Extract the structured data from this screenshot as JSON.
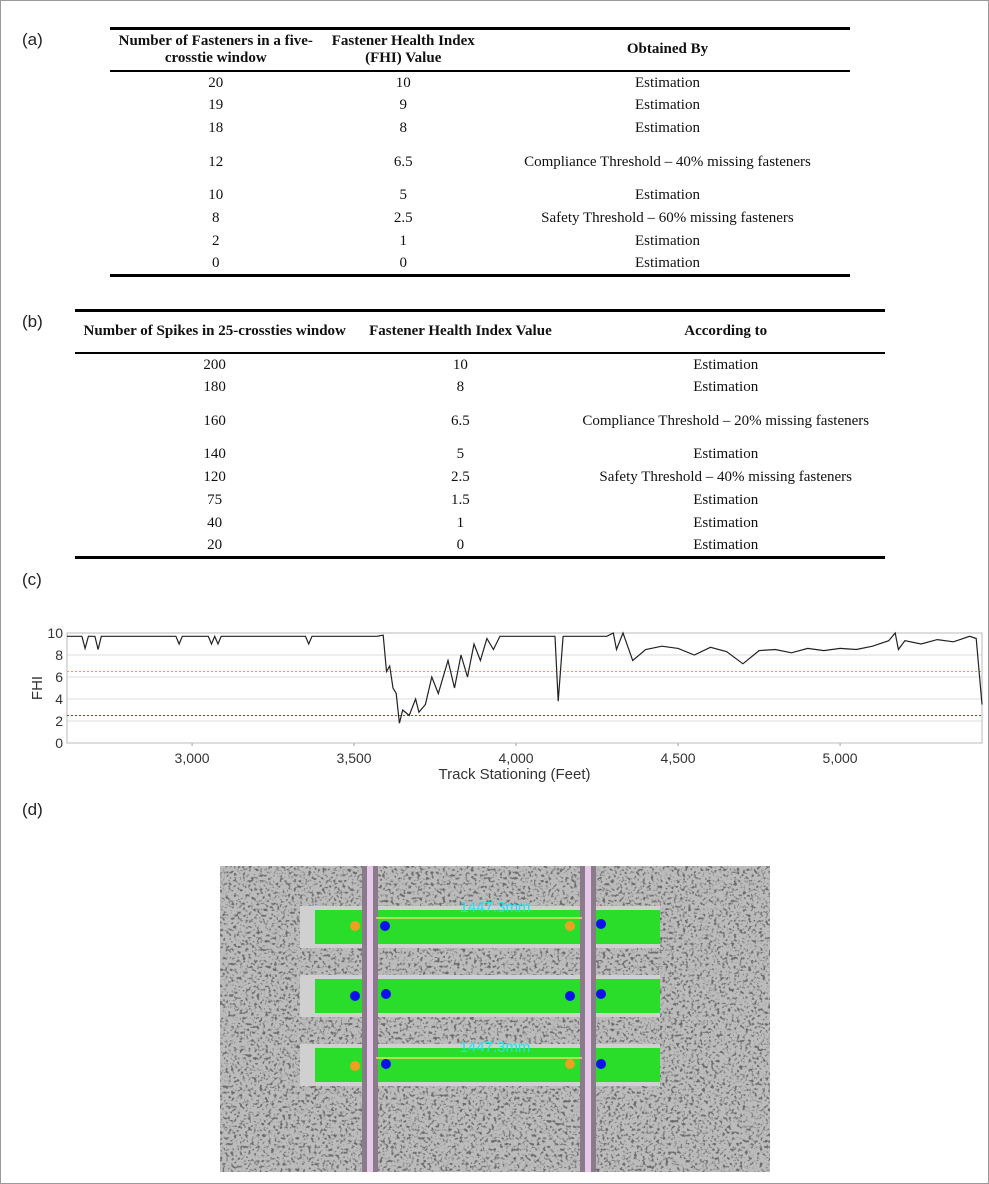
{
  "panels": [
    "(a)",
    "(b)",
    "(c)",
    "(d)"
  ],
  "table_a": {
    "header": [
      "Number of Fasteners in a five-crosstie window",
      "Fastener Health Index (FHI) Value",
      "Obtained By"
    ],
    "rows": [
      [
        "20",
        "10",
        "Estimation"
      ],
      [
        "19",
        "9",
        "Estimation"
      ],
      [
        "18",
        "8",
        "Estimation"
      ],
      [
        "12",
        "6.5",
        "Compliance Threshold – 40% missing fasteners"
      ],
      [
        "10",
        "5",
        "Estimation"
      ],
      [
        "8",
        "2.5",
        "Safety Threshold – 60% missing fasteners"
      ],
      [
        "2",
        "1",
        "Estimation"
      ],
      [
        "0",
        "0",
        "Estimation"
      ]
    ]
  },
  "table_b": {
    "header": [
      "Number of Spikes in 25-crossties window",
      "Fastener Health Index Value",
      "According to"
    ],
    "rows": [
      [
        "200",
        "10",
        "Estimation"
      ],
      [
        "180",
        "8",
        "Estimation"
      ],
      [
        "160",
        "6.5",
        "Compliance Threshold – 20% missing fasteners"
      ],
      [
        "140",
        "5",
        "Estimation"
      ],
      [
        "120",
        "2.5",
        "Safety Threshold – 40% missing fasteners"
      ],
      [
        "75",
        "1.5",
        "Estimation"
      ],
      [
        "40",
        "1",
        "Estimation"
      ],
      [
        "20",
        "0",
        "Estimation"
      ]
    ]
  },
  "chart_data": {
    "type": "line",
    "x_label": "Track Stationing (Feet)",
    "y_label": "FHI",
    "xlim": [
      2614,
      5438
    ],
    "ylim": [
      0,
      10
    ],
    "xticks": [
      {
        "value": 3000,
        "label": "3,000"
      },
      {
        "value": 3500,
        "label": "3,500"
      },
      {
        "value": 4000,
        "label": "4,000"
      },
      {
        "value": 4500,
        "label": "4,500"
      },
      {
        "value": 5000,
        "label": "5,000"
      }
    ],
    "yticks": [
      0,
      2,
      4,
      6,
      8,
      10
    ],
    "grid": true,
    "thresholds": [
      {
        "value": 6.5,
        "color": "#f0a030"
      },
      {
        "value": 2.5,
        "color": "#e02020"
      }
    ],
    "series": [
      {
        "color": "#222222",
        "x": [
          2614,
          2660,
          2670,
          2680,
          2700,
          2710,
          2720,
          2950,
          2960,
          2970,
          3050,
          3060,
          3070,
          3080,
          3090,
          3350,
          3360,
          3370,
          3570,
          3590,
          3600,
          3610,
          3620,
          3630,
          3640,
          3650,
          3670,
          3690,
          3700,
          3720,
          3740,
          3760,
          3790,
          3810,
          3830,
          3850,
          3870,
          3890,
          3910,
          3930,
          3950,
          4120,
          4130,
          4145,
          4280,
          4300,
          4310,
          4330,
          4360,
          4400,
          4450,
          4500,
          4550,
          4600,
          4650,
          4700,
          4750,
          4800,
          4850,
          4900,
          4950,
          5000,
          5050,
          5100,
          5150,
          5170,
          5180,
          5200,
          5250,
          5300,
          5350,
          5400,
          5420,
          5438
        ],
        "values": [
          9.7,
          9.7,
          8.6,
          9.7,
          9.7,
          8.5,
          9.7,
          9.7,
          9.0,
          9.7,
          9.7,
          9.0,
          9.7,
          9.0,
          9.7,
          9.7,
          9.0,
          9.7,
          9.7,
          9.8,
          6.5,
          7.0,
          5.0,
          4.5,
          1.8,
          3.0,
          2.5,
          4.0,
          2.8,
          3.5,
          6.0,
          4.5,
          7.5,
          5.0,
          8.0,
          6.0,
          9.0,
          7.5,
          9.5,
          8.5,
          9.7,
          9.7,
          3.8,
          9.7,
          9.7,
          10,
          8.5,
          10,
          7.5,
          8.5,
          8.8,
          8.6,
          8.0,
          8.7,
          8.3,
          7.2,
          8.4,
          8.5,
          8.2,
          8.6,
          8.4,
          8.6,
          8.5,
          8.8,
          9.3,
          10,
          8.5,
          9.3,
          9.0,
          9.4,
          9.2,
          9.7,
          9.5,
          3.5
        ]
      }
    ]
  },
  "image": {
    "annotations": [
      "1447.3mm",
      "1447.3mm"
    ]
  }
}
